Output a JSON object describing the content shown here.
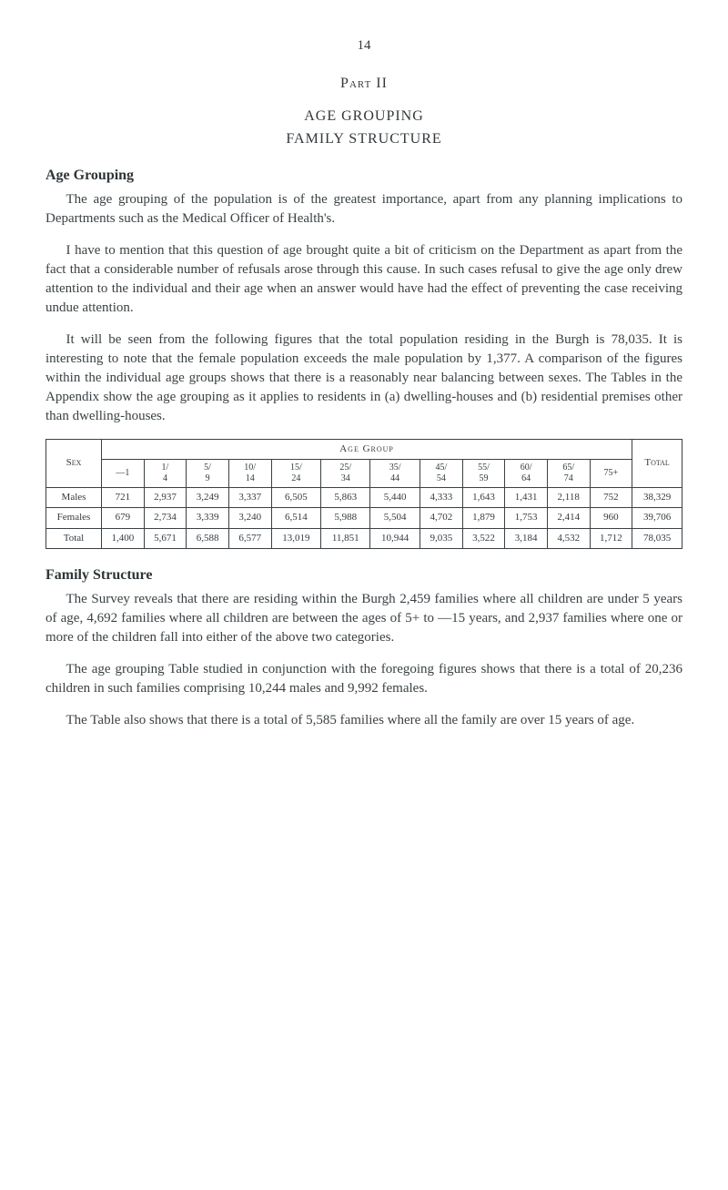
{
  "page_number": "14",
  "part_label": "Part II",
  "title_line1": "AGE GROUPING",
  "title_line2": "FAMILY STRUCTURE",
  "section1_head": "Age Grouping",
  "para1": "The age grouping of the population is of the greatest importance, apart from any planning implications to Departments such as the Medical Officer of Health's.",
  "para2": "I have to mention that this question of age brought quite a bit of criticism on the Department as apart from the fact that a considerable number of refusals arose through this cause. In such cases refusal to give the age only drew attention to the individual and their age when an answer would have had the effect of preventing the case receiving undue attention.",
  "para3": "It will be seen from the following figures that the total population residing in the Burgh is 78,035. It is interesting to note that the female population exceeds the male population by 1,377. A comparison of the figures within the individual age groups shows that there is a reasonably near balancing between sexes. The Tables in the Appendix show the age grouping as it applies to residents in (a) dwelling-houses and (b) residential premises other than dwelling-houses.",
  "table": {
    "sex_label": "Sex",
    "age_group_label": "Age Group",
    "total_label": "Total",
    "age_cols": [
      {
        "top": "—1",
        "bot": ""
      },
      {
        "top": "1/",
        "bot": "4"
      },
      {
        "top": "5/",
        "bot": "9"
      },
      {
        "top": "10/",
        "bot": "14"
      },
      {
        "top": "15/",
        "bot": "24"
      },
      {
        "top": "25/",
        "bot": "34"
      },
      {
        "top": "35/",
        "bot": "44"
      },
      {
        "top": "45/",
        "bot": "54"
      },
      {
        "top": "55/",
        "bot": "59"
      },
      {
        "top": "60/",
        "bot": "64"
      },
      {
        "top": "65/",
        "bot": "74"
      },
      {
        "top": "75+",
        "bot": ""
      }
    ],
    "rows": [
      {
        "label": "Males",
        "vals": [
          "721",
          "2,937",
          "3,249",
          "3,337",
          "6,505",
          "5,863",
          "5,440",
          "4,333",
          "1,643",
          "1,431",
          "2,118",
          "752"
        ],
        "total": "38,329"
      },
      {
        "label": "Females",
        "vals": [
          "679",
          "2,734",
          "3,339",
          "3,240",
          "6,514",
          "5,988",
          "5,504",
          "4,702",
          "1,879",
          "1,753",
          "2,414",
          "960"
        ],
        "total": "39,706"
      },
      {
        "label": "Total",
        "vals": [
          "1,400",
          "5,671",
          "6,588",
          "6,577",
          "13,019",
          "11,851",
          "10,944",
          "9,035",
          "3,522",
          "3,184",
          "4,532",
          "1,712"
        ],
        "total": "78,035"
      }
    ]
  },
  "section2_head": "Family Structure",
  "para4": "The Survey reveals that there are residing within the Burgh 2,459 families where all children are under 5 years of age, 4,692 families where all children are between the ages of 5+ to —15 years, and 2,937 families where one or more of the children fall into either of the above two categories.",
  "para5": "The age grouping Table studied in conjunction with the foregoing figures shows that there is a total of 20,236 children in such families comprising 10,244 males and 9,992 females.",
  "para6": "The Table also shows that there is a total of 5,585 families where all the family are over 15 years of age."
}
